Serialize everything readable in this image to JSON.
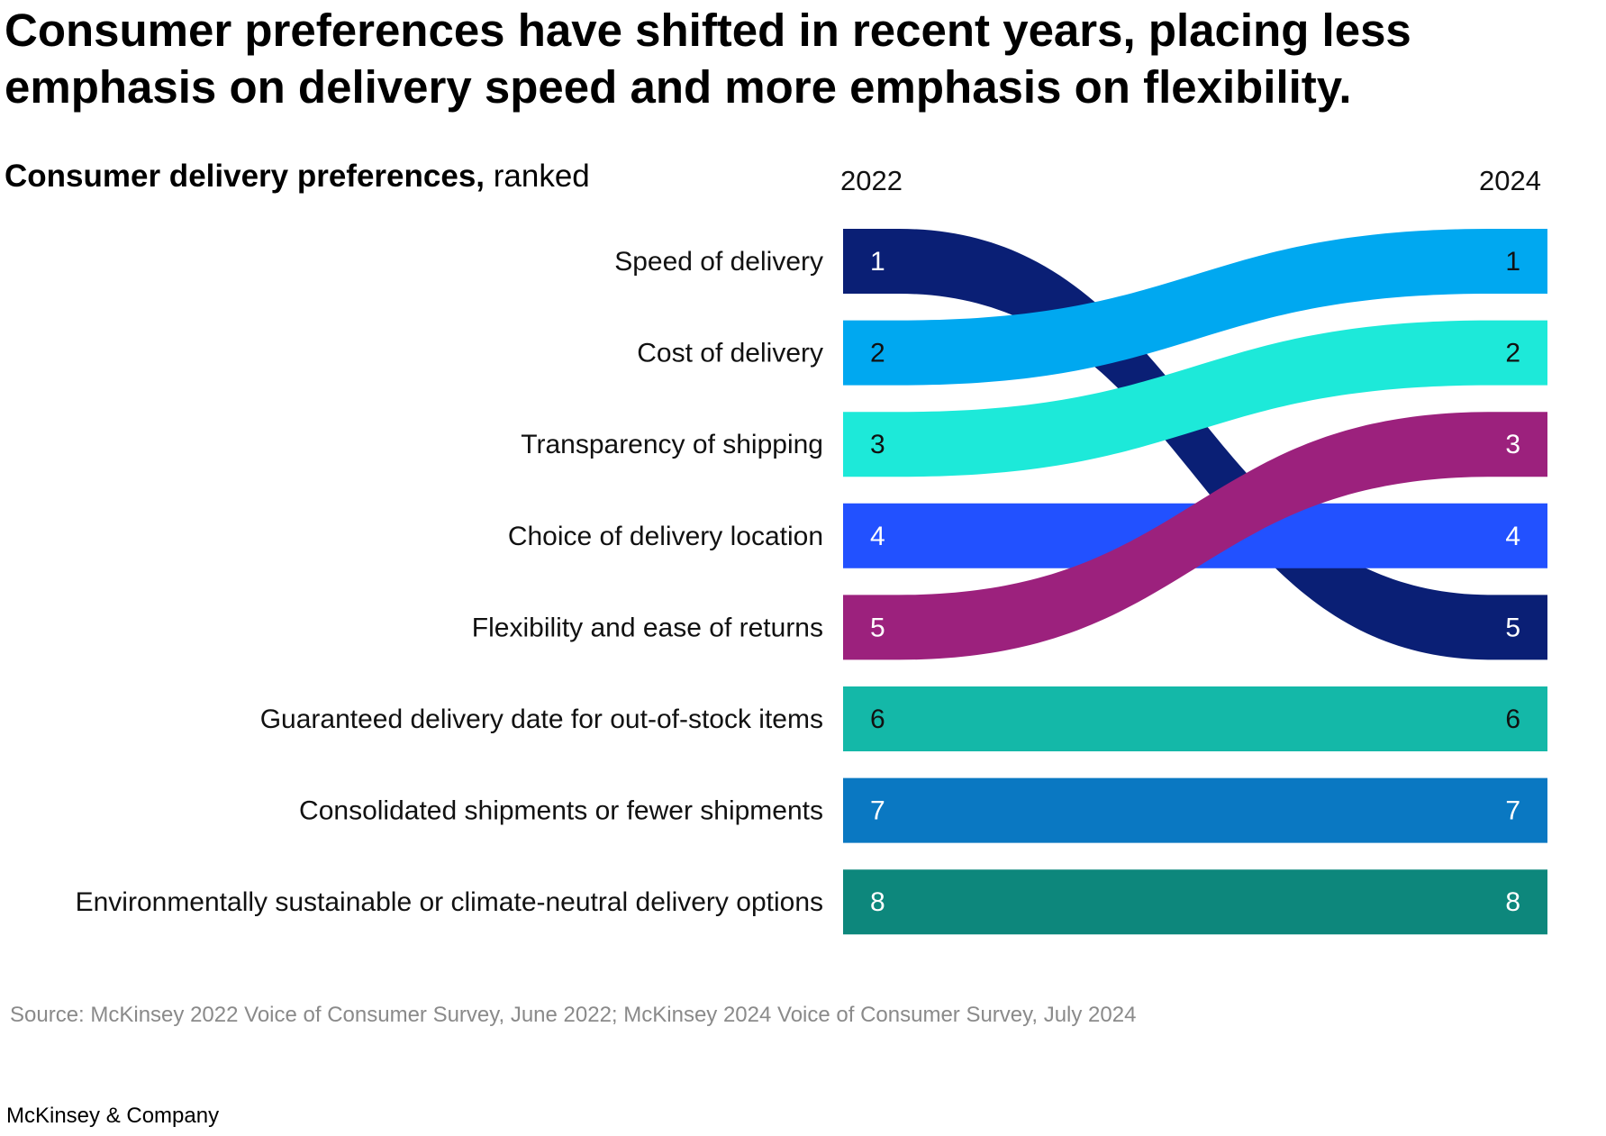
{
  "headline": "Consumer preferences have shifted in recent years, placing less emphasis on delivery speed and more emphasis on flexibility.",
  "subtitle": {
    "bold": "Consumer delivery preferences,",
    "normal": " ranked"
  },
  "source": "Source: McKinsey 2022 Voice of Consumer Survey, June 2022; McKinsey 2024 Voice of Consumer Survey, July 2024",
  "brand": "McKinsey & Company",
  "chart_data": {
    "type": "bump",
    "title": "Consumer delivery preferences, ranked",
    "years": [
      "2022",
      "2024"
    ],
    "categories": [
      "Speed of delivery",
      "Cost of delivery",
      "Transparency of shipping",
      "Choice of delivery location",
      "Flexibility and ease of returns",
      "Guaranteed delivery date for out-of-stock items",
      "Consolidated shipments or fewer shipments",
      "Environmentally sustainable or climate-neutral delivery options"
    ],
    "series": [
      {
        "name": "Speed of delivery",
        "rank_2022": 1,
        "rank_2024": 5,
        "color": "#0a1f75",
        "text_color": "#ffffff"
      },
      {
        "name": "Cost of delivery",
        "rank_2022": 2,
        "rank_2024": 1,
        "color": "#00a8f0",
        "text_color": "#111111"
      },
      {
        "name": "Transparency of shipping",
        "rank_2022": 3,
        "rank_2024": 2,
        "color": "#1de9d9",
        "text_color": "#111111"
      },
      {
        "name": "Choice of delivery location",
        "rank_2022": 4,
        "rank_2024": 4,
        "color": "#2251ff",
        "text_color": "#ffffff"
      },
      {
        "name": "Flexibility and ease of returns",
        "rank_2022": 5,
        "rank_2024": 3,
        "color": "#9c217d",
        "text_color": "#ffffff"
      },
      {
        "name": "Guaranteed delivery date for out-of-stock items",
        "rank_2022": 6,
        "rank_2024": 6,
        "color": "#14b8a8",
        "text_color": "#111111"
      },
      {
        "name": "Consolidated shipments or fewer shipments",
        "rank_2022": 7,
        "rank_2024": 7,
        "color": "#0a78c2",
        "text_color": "#ffffff"
      },
      {
        "name": "Environmentally sustainable or climate-neutral delivery options",
        "rank_2022": 8,
        "rank_2024": 8,
        "color": "#0d877c",
        "text_color": "#ffffff"
      }
    ]
  }
}
